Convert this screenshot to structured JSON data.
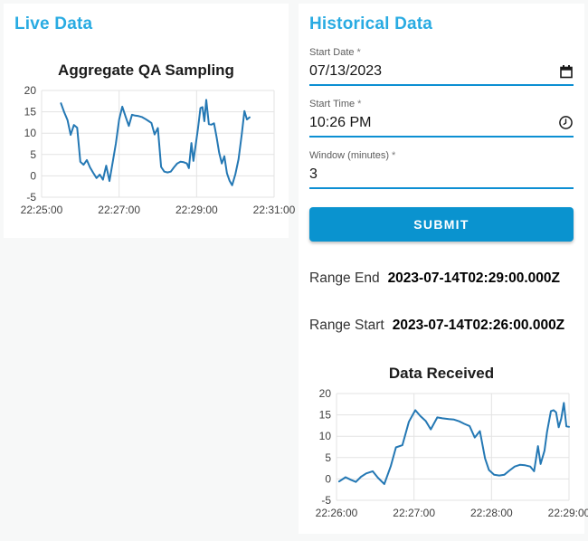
{
  "page": {
    "background_color": "#f7f8f8",
    "card_color": "#ffffff"
  },
  "colors": {
    "heading_blue": "#29abe2",
    "accent_blue": "#0c8fd3",
    "button_blue": "#0a93cf",
    "chart_line_blue": "#2478b4",
    "grid": "#e3e3e3",
    "tick_text": "#404040"
  },
  "live_panel": {
    "title": "Live Data"
  },
  "historical_panel": {
    "title": "Historical Data",
    "fields": [
      {
        "label": "Start Date",
        "required_marker": "*",
        "value": "07/13/2023",
        "icon": "calendar-icon"
      },
      {
        "label": "Start Time",
        "required_marker": "*",
        "value": "10:26 PM",
        "icon": "clock-icon"
      },
      {
        "label": "Window (minutes)",
        "required_marker": "*",
        "value": "3",
        "icon": null
      }
    ],
    "submit_label": "SUBMIT",
    "results": [
      {
        "label": "Range End",
        "value": "2023-07-14T02:29:00.000Z"
      },
      {
        "label": "Range Start",
        "value": "2023-07-14T02:26:00.000Z"
      }
    ]
  },
  "chart_data": [
    {
      "type": "line",
      "title": "Aggregate QA Sampling",
      "xlabel": "",
      "ylabel": "",
      "legend": false,
      "grid": true,
      "line_color": "#2478b4",
      "y_axis": {
        "lim": [
          -5,
          20
        ],
        "ticks": [
          20,
          15,
          10,
          5,
          0,
          -5
        ]
      },
      "x_axis": {
        "start": "22:25:00",
        "end": "22:31:00",
        "tick_labels": [
          "22:25:00",
          "22:27:00",
          "22:29:00",
          "22:31:00"
        ],
        "tick_seconds": [
          0,
          120,
          240,
          360
        ],
        "range_seconds": [
          0,
          360
        ]
      },
      "points": [
        [
          30,
          17.0
        ],
        [
          35,
          14.9
        ],
        [
          40,
          13.1
        ],
        [
          45,
          9.6
        ],
        [
          50,
          11.9
        ],
        [
          55,
          11.3
        ],
        [
          60,
          3.3
        ],
        [
          65,
          2.6
        ],
        [
          70,
          3.7
        ],
        [
          75,
          2.0
        ],
        [
          80,
          0.7
        ],
        [
          85,
          -0.5
        ],
        [
          90,
          0.3
        ],
        [
          95,
          -0.9
        ],
        [
          100,
          2.4
        ],
        [
          105,
          -1.2
        ],
        [
          110,
          3.1
        ],
        [
          115,
          7.6
        ],
        [
          120,
          13.2
        ],
        [
          125,
          16.2
        ],
        [
          130,
          13.9
        ],
        [
          135,
          11.7
        ],
        [
          140,
          14.3
        ],
        [
          145,
          14.1
        ],
        [
          150,
          14.0
        ],
        [
          155,
          13.8
        ],
        [
          160,
          13.4
        ],
        [
          165,
          12.9
        ],
        [
          170,
          12.4
        ],
        [
          175,
          9.7
        ],
        [
          180,
          11.2
        ],
        [
          185,
          2.1
        ],
        [
          190,
          1.0
        ],
        [
          195,
          0.8
        ],
        [
          200,
          1.0
        ],
        [
          205,
          2.0
        ],
        [
          210,
          2.9
        ],
        [
          215,
          3.3
        ],
        [
          220,
          3.2
        ],
        [
          225,
          2.9
        ],
        [
          228,
          1.8
        ],
        [
          232,
          7.7
        ],
        [
          235,
          3.5
        ],
        [
          238,
          6.6
        ],
        [
          242,
          11.0
        ],
        [
          246,
          15.9
        ],
        [
          249,
          16.1
        ],
        [
          252,
          12.8
        ],
        [
          255,
          17.8
        ],
        [
          259,
          12.1
        ],
        [
          263,
          12.0
        ],
        [
          267,
          12.3
        ],
        [
          271,
          9.0
        ],
        [
          275,
          5.4
        ],
        [
          279,
          2.9
        ],
        [
          283,
          4.6
        ],
        [
          287,
          0.6
        ],
        [
          291,
          -1.1
        ],
        [
          295,
          -2.2
        ],
        [
          300,
          0.4
        ],
        [
          305,
          3.9
        ],
        [
          310,
          9.8
        ],
        [
          314,
          15.2
        ],
        [
          318,
          13.2
        ],
        [
          322,
          13.7
        ]
      ]
    },
    {
      "type": "line",
      "title": "Data Received",
      "xlabel": "",
      "ylabel": "",
      "legend": false,
      "grid": true,
      "line_color": "#2478b4",
      "y_axis": {
        "lim": [
          -5,
          20
        ],
        "ticks": [
          20,
          15,
          10,
          5,
          0,
          -5
        ]
      },
      "x_axis": {
        "start": "22:26:00",
        "end": "22:29:00",
        "tick_labels": [
          "22:26:00",
          "22:27:00",
          "22:28:00",
          "22:29:00"
        ],
        "tick_seconds": [
          0,
          60,
          120,
          180
        ],
        "range_seconds": [
          0,
          180
        ]
      },
      "points": [
        [
          2,
          -0.6
        ],
        [
          7,
          0.4
        ],
        [
          11,
          -0.2
        ],
        [
          15,
          -0.7
        ],
        [
          19,
          0.5
        ],
        [
          23,
          1.3
        ],
        [
          28,
          1.8
        ],
        [
          32,
          0.3
        ],
        [
          37,
          -1.2
        ],
        [
          42,
          3.0
        ],
        [
          46,
          7.4
        ],
        [
          51,
          7.9
        ],
        [
          56,
          13.4
        ],
        [
          61,
          16.1
        ],
        [
          65,
          14.7
        ],
        [
          69,
          13.6
        ],
        [
          73,
          11.6
        ],
        [
          78,
          14.4
        ],
        [
          82,
          14.2
        ],
        [
          87,
          14.0
        ],
        [
          91,
          13.9
        ],
        [
          95,
          13.5
        ],
        [
          99,
          12.9
        ],
        [
          103,
          12.4
        ],
        [
          107,
          9.7
        ],
        [
          111,
          11.2
        ],
        [
          115,
          4.8
        ],
        [
          118,
          2.1
        ],
        [
          122,
          1.0
        ],
        [
          126,
          0.8
        ],
        [
          130,
          1.0
        ],
        [
          134,
          2.0
        ],
        [
          138,
          2.9
        ],
        [
          142,
          3.3
        ],
        [
          146,
          3.2
        ],
        [
          150,
          2.9
        ],
        [
          153,
          1.8
        ],
        [
          156,
          7.7
        ],
        [
          158,
          3.5
        ],
        [
          161,
          6.6
        ],
        [
          163,
          11.0
        ],
        [
          166,
          15.9
        ],
        [
          168,
          16.1
        ],
        [
          170,
          15.6
        ],
        [
          172,
          12.1
        ],
        [
          174,
          14.1
        ],
        [
          176,
          17.8
        ],
        [
          178,
          12.3
        ],
        [
          180,
          12.2
        ]
      ]
    }
  ]
}
